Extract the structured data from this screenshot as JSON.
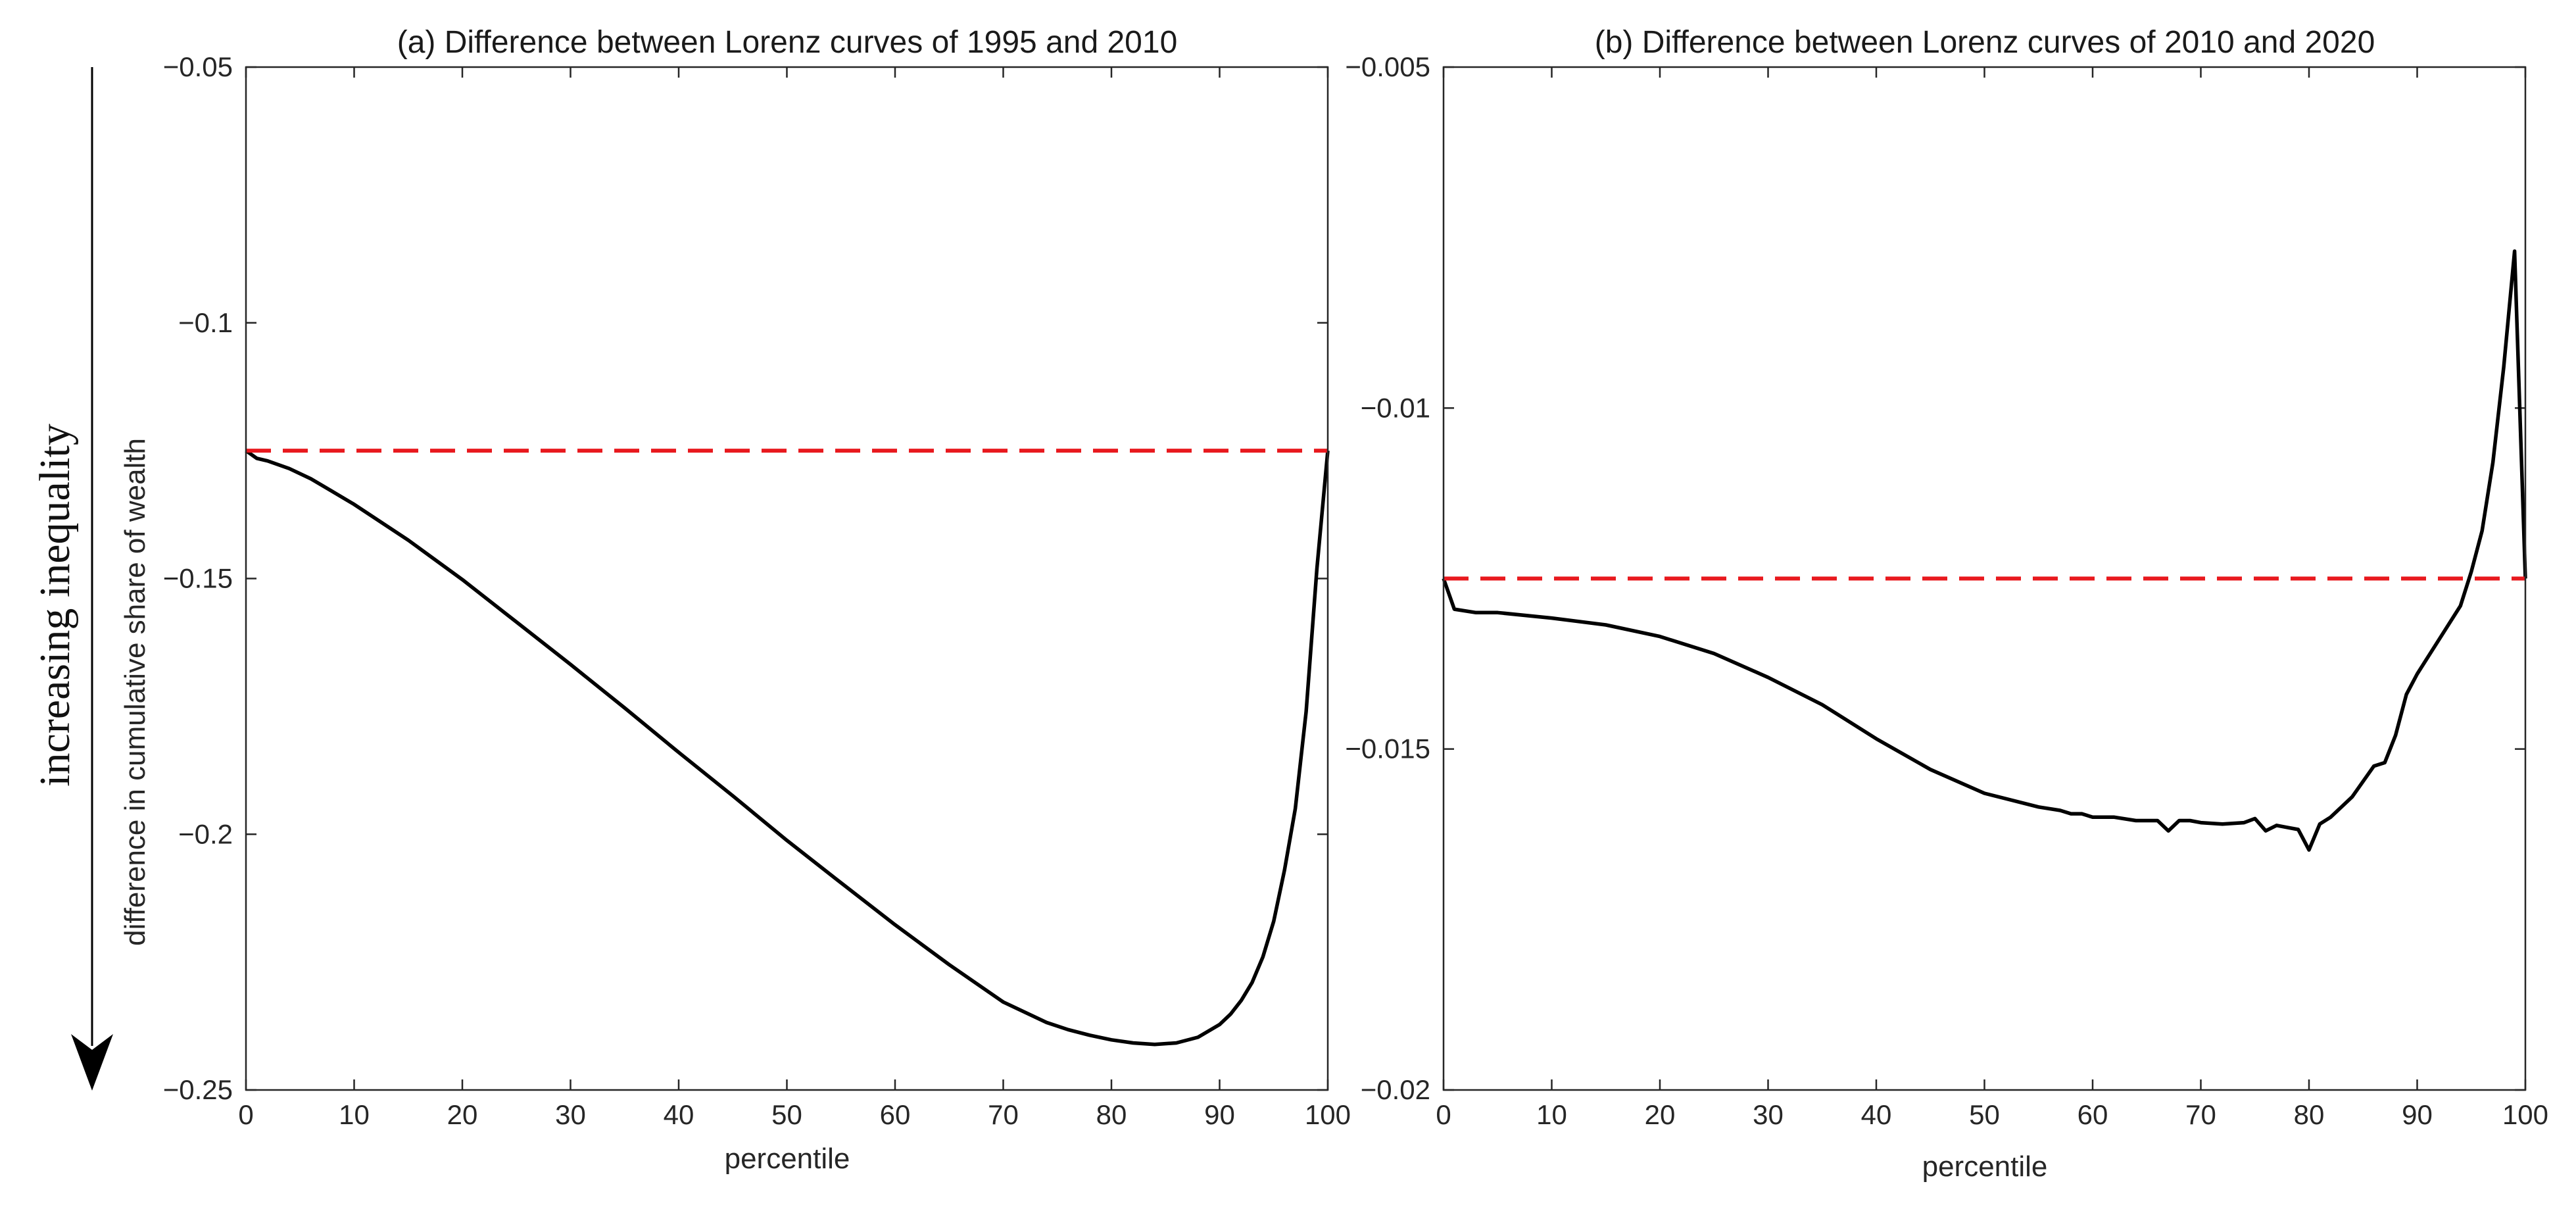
{
  "annotation": {
    "label": "increasing inequality",
    "arrow_direction": "down",
    "color": "#000000"
  },
  "chart_data": [
    {
      "type": "line",
      "title": "(a) Difference between Lorenz curves of 1995 and 2010",
      "xlabel": "percentile",
      "ylabel": "difference in cumulative share of wealth",
      "xlim": [
        0,
        100
      ],
      "ylim": [
        -0.25,
        -0.05
      ],
      "xticks": [
        0,
        10,
        20,
        30,
        40,
        50,
        60,
        70,
        80,
        90,
        100
      ],
      "xtick_labels": [
        "0",
        "10",
        "20",
        "30",
        "40",
        "50",
        "60",
        "70",
        "80",
        "90",
        "100"
      ],
      "yticks": [
        -0.25,
        -0.2,
        -0.15,
        -0.1,
        -0.05
      ],
      "ytick_labels": [
        "−0.25",
        "−0.2",
        "−0.15",
        "−0.1",
        "−0.05"
      ],
      "series": [
        {
          "name": "difference",
          "color": "#000000",
          "style": "solid",
          "x": [
            0,
            1,
            2,
            4,
            6,
            8,
            10,
            15,
            20,
            25,
            30,
            35,
            40,
            45,
            50,
            55,
            60,
            65,
            70,
            74,
            76,
            78,
            80,
            82,
            84,
            86,
            88,
            90,
            91,
            92,
            93,
            94,
            95,
            96,
            97,
            98,
            99,
            100
          ],
          "y": [
            -0.125,
            -0.1265,
            -0.127,
            -0.1285,
            -0.1305,
            -0.133,
            -0.1355,
            -0.1425,
            -0.1502,
            -0.1585,
            -0.1668,
            -0.1753,
            -0.184,
            -0.1925,
            -0.2012,
            -0.2095,
            -0.2177,
            -0.2255,
            -0.2328,
            -0.2368,
            -0.2382,
            -0.2393,
            -0.2402,
            -0.2408,
            -0.2411,
            -0.2408,
            -0.2397,
            -0.2372,
            -0.2352,
            -0.2325,
            -0.229,
            -0.224,
            -0.217,
            -0.207,
            -0.195,
            -0.176,
            -0.148,
            -0.125
          ]
        },
        {
          "name": "reference",
          "color": "#e8191e",
          "style": "dashed",
          "x": [
            0,
            100
          ],
          "y": [
            -0.125,
            -0.125
          ]
        }
      ]
    },
    {
      "type": "line",
      "title": "(b) Difference between Lorenz curves of 2010 and 2020",
      "xlabel": "percentile",
      "ylabel": "",
      "xlim": [
        0,
        100
      ],
      "ylim": [
        -0.02,
        -0.005
      ],
      "xticks": [
        0,
        10,
        20,
        30,
        40,
        50,
        60,
        70,
        80,
        90,
        100
      ],
      "xtick_labels": [
        "0",
        "10",
        "20",
        "30",
        "40",
        "50",
        "60",
        "70",
        "80",
        "90",
        "100"
      ],
      "yticks": [
        -0.02,
        -0.015,
        -0.01,
        -0.005
      ],
      "ytick_labels": [
        "−0.02",
        "−0.015",
        "−0.01",
        "−0.005"
      ],
      "series": [
        {
          "name": "difference",
          "color": "#000000",
          "style": "solid",
          "x": [
            0,
            1,
            3,
            5,
            10,
            15,
            20,
            25,
            30,
            35,
            40,
            45,
            50,
            55,
            57,
            58,
            59,
            60,
            62,
            64,
            66,
            67,
            68,
            69,
            70,
            72,
            74,
            75,
            76,
            77,
            78,
            79,
            80,
            81,
            82,
            84,
            86,
            87,
            88,
            89,
            90,
            92,
            94,
            95,
            96,
            97,
            98,
            99,
            100
          ],
          "y": [
            -0.0125,
            -0.01295,
            -0.013,
            -0.013,
            -0.01308,
            -0.01318,
            -0.01335,
            -0.0136,
            -0.01395,
            -0.01435,
            -0.01485,
            -0.0153,
            -0.01565,
            -0.01585,
            -0.0159,
            -0.01595,
            -0.01595,
            -0.016,
            -0.016,
            -0.01605,
            -0.01605,
            -0.0162,
            -0.01605,
            -0.01605,
            -0.01608,
            -0.0161,
            -0.01608,
            -0.01602,
            -0.0162,
            -0.01612,
            -0.01615,
            -0.01618,
            -0.01648,
            -0.0161,
            -0.016,
            -0.0157,
            -0.01525,
            -0.0152,
            -0.0148,
            -0.0142,
            -0.0139,
            -0.0134,
            -0.0129,
            -0.0124,
            -0.0118,
            -0.0108,
            -0.0094,
            -0.0077,
            -0.0125
          ]
        },
        {
          "name": "reference",
          "color": "#e8191e",
          "style": "dashed",
          "x": [
            0,
            100
          ],
          "y": [
            -0.0125,
            -0.0125
          ]
        }
      ]
    }
  ]
}
